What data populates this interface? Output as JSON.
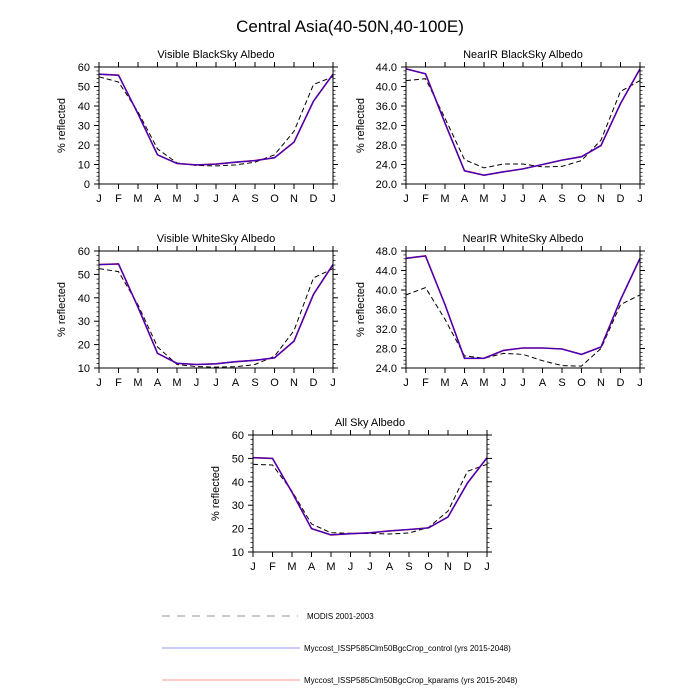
{
  "title": "Central Asia(40-50N,40-100E)",
  "legend": [
    {
      "label": "MODIS 2001-2003",
      "color": "#aaaaaa",
      "style": "dashed"
    },
    {
      "label": "Myccost_ISSP585Clm50BgcCrop_control (yrs 2015-2048)",
      "color": "#7777ee",
      "style": "solid"
    },
    {
      "label": "Myccost_ISSP585Clm50BgcCrop_kparams (yrs 2015-2048)",
      "color": "#ffaaaa",
      "style": "solid"
    }
  ],
  "chart_data": [
    {
      "type": "line",
      "title": "Visible BlackSky Albedo",
      "ylabel": "% reflected",
      "categories": [
        "J",
        "F",
        "M",
        "A",
        "M",
        "J",
        "J",
        "A",
        "S",
        "O",
        "N",
        "D",
        "J"
      ],
      "ylim": [
        0,
        60
      ],
      "yticks": [
        "0",
        "10",
        "20",
        "30",
        "40",
        "50",
        "60"
      ],
      "grid": false,
      "series": [
        {
          "name": "MODIS 2001-2003",
          "color": "#000000",
          "dashed": true,
          "values": [
            55,
            52.3,
            37,
            18,
            10.8,
            9.5,
            9.3,
            9.8,
            11.2,
            15,
            27,
            51,
            55
          ]
        },
        {
          "name": "Myccost_ISSP585Clm50BgcCrop_kparams (yrs 2015-2048)",
          "color": "#ff0000",
          "values": [
            56.3,
            55.8,
            36,
            15,
            10.5,
            9.8,
            10.2,
            11.2,
            12,
            13.5,
            21.5,
            42.5,
            56.3
          ]
        },
        {
          "name": "Myccost_ISSP585Clm50BgcCrop_control (yrs 2015-2048)",
          "color": "#0000ff",
          "values": [
            56.3,
            55.8,
            36,
            15,
            10.5,
            9.8,
            10.2,
            11.2,
            12,
            13.5,
            21.5,
            42.5,
            56.3
          ]
        }
      ]
    },
    {
      "type": "line",
      "title": "NearIR BlackSky Albedo",
      "ylabel": "% reflected",
      "categories": [
        "J",
        "F",
        "M",
        "A",
        "M",
        "J",
        "J",
        "A",
        "S",
        "O",
        "N",
        "D",
        "J"
      ],
      "ylim": [
        20,
        44
      ],
      "yticks": [
        "20.0",
        "24.0",
        "28.0",
        "32.0",
        "36.0",
        "40.0",
        "44.0"
      ],
      "grid": false,
      "series": [
        {
          "name": "MODIS 2001-2003",
          "color": "#000000",
          "dashed": true,
          "values": [
            41.2,
            41.6,
            33.5,
            25,
            23.3,
            24.1,
            24.1,
            23.5,
            23.6,
            24.8,
            29,
            39,
            41.2
          ]
        },
        {
          "name": "Myccost_ISSP585Clm50BgcCrop_kparams (yrs 2015-2048)",
          "color": "#ff0000",
          "values": [
            43.6,
            42.6,
            32.5,
            22.7,
            21.8,
            22.5,
            23.1,
            24,
            24.9,
            25.6,
            27.9,
            36.5,
            43.6
          ]
        },
        {
          "name": "Myccost_ISSP585Clm50BgcCrop_control (yrs 2015-2048)",
          "color": "#0000ff",
          "values": [
            43.6,
            42.6,
            32.5,
            22.7,
            21.8,
            22.5,
            23.1,
            24,
            24.9,
            25.6,
            27.9,
            36.5,
            43.6
          ]
        }
      ]
    },
    {
      "type": "line",
      "title": "Visible WhiteSky Albedo",
      "ylabel": "% reflected",
      "categories": [
        "J",
        "F",
        "M",
        "A",
        "M",
        "J",
        "J",
        "A",
        "S",
        "O",
        "N",
        "D",
        "J"
      ],
      "ylim": [
        10,
        60
      ],
      "yticks": [
        "10",
        "20",
        "30",
        "40",
        "50",
        "60"
      ],
      "grid": false,
      "series": [
        {
          "name": "MODIS 2001-2003",
          "color": "#000000",
          "dashed": true,
          "values": [
            52.5,
            51.2,
            37,
            19,
            11.5,
            10.6,
            10.4,
            10.5,
            11.5,
            15,
            26,
            48.5,
            52.5
          ]
        },
        {
          "name": "Myccost_ISSP585Clm50BgcCrop_kparams (yrs 2015-2048)",
          "color": "#ff0000",
          "values": [
            54.2,
            54.5,
            36,
            16.3,
            12,
            11.5,
            11.8,
            12.7,
            13.3,
            14.3,
            21.5,
            41.5,
            54.2
          ]
        },
        {
          "name": "Myccost_ISSP585Clm50BgcCrop_control (yrs 2015-2048)",
          "color": "#0000ff",
          "values": [
            54.2,
            54.5,
            36,
            16.3,
            12,
            11.5,
            11.8,
            12.7,
            13.3,
            14.3,
            21.5,
            41.5,
            54.2
          ]
        }
      ]
    },
    {
      "type": "line",
      "title": "NearIR WhiteSky Albedo",
      "ylabel": "% reflected",
      "categories": [
        "J",
        "F",
        "M",
        "A",
        "M",
        "J",
        "J",
        "A",
        "S",
        "O",
        "N",
        "D",
        "J"
      ],
      "ylim": [
        24,
        48
      ],
      "yticks": [
        "24.0",
        "28.0",
        "32.0",
        "36.0",
        "40.0",
        "44.0",
        "48.0"
      ],
      "grid": false,
      "series": [
        {
          "name": "MODIS 2001-2003",
          "color": "#000000",
          "dashed": true,
          "values": [
            39,
            40.5,
            34,
            26.5,
            26,
            27,
            26.8,
            25.5,
            24.5,
            24.4,
            28,
            37,
            39
          ]
        },
        {
          "name": "Myccost_ISSP585Clm50BgcCrop_kparams (yrs 2015-2048)",
          "color": "#ff0000",
          "values": [
            46.5,
            47,
            37,
            26,
            26,
            27.6,
            28.1,
            28.1,
            27.9,
            26.8,
            28.3,
            38,
            46.5
          ]
        },
        {
          "name": "Myccost_ISSP585Clm50BgcCrop_control (yrs 2015-2048)",
          "color": "#0000ff",
          "values": [
            46.5,
            47,
            37,
            26,
            26,
            27.6,
            28.1,
            28.1,
            27.9,
            26.8,
            28.3,
            38,
            46.5
          ]
        }
      ]
    },
    {
      "type": "line",
      "title": "All Sky Albedo",
      "ylabel": "% reflected",
      "categories": [
        "J",
        "F",
        "M",
        "A",
        "M",
        "J",
        "J",
        "A",
        "S",
        "O",
        "N",
        "D",
        "J"
      ],
      "ylim": [
        10,
        60
      ],
      "yticks": [
        "10",
        "20",
        "30",
        "40",
        "50",
        "60"
      ],
      "grid": false,
      "series": [
        {
          "name": "MODIS 2001-2003",
          "color": "#000000",
          "dashed": true,
          "values": [
            47.5,
            47.2,
            36,
            22,
            18.2,
            18,
            17.9,
            17.7,
            18.1,
            20.5,
            27.5,
            44.5,
            47.5
          ]
        },
        {
          "name": "Myccost_ISSP585Clm50BgcCrop_kparams (yrs 2015-2048)",
          "color": "#ff0000",
          "values": [
            50.3,
            50,
            35.5,
            20,
            17.3,
            17.8,
            18.2,
            19,
            19.6,
            20.3,
            25,
            39.5,
            50.3
          ]
        },
        {
          "name": "Myccost_ISSP585Clm50BgcCrop_control (yrs 2015-2048)",
          "color": "#0000ff",
          "values": [
            50.3,
            50,
            35.5,
            20,
            17.3,
            17.8,
            18.2,
            19,
            19.6,
            20.3,
            25,
            39.5,
            50.3
          ]
        }
      ]
    }
  ]
}
